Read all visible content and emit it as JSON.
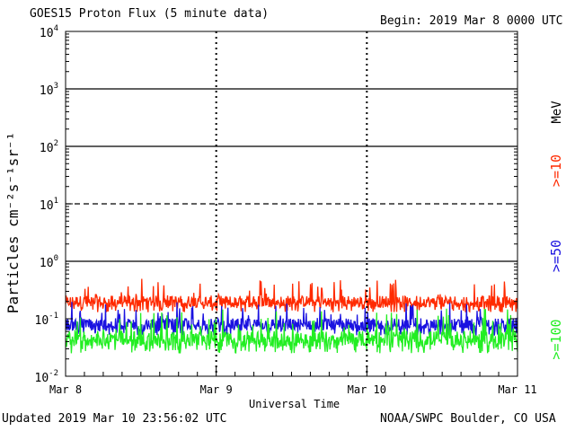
{
  "header": {
    "title": "GOES15 Proton Flux (5 minute data)",
    "begin": "Begin: 2019 Mar 8 0000 UTC"
  },
  "footer": {
    "updated": "Updated 2019 Mar 10 23:56:02 UTC",
    "credit": "NOAA/SWPC Boulder, CO USA"
  },
  "chart_data": {
    "type": "line",
    "title": "GOES15 Proton Flux (5 minute data)",
    "xlabel": "Universal Time",
    "ylabel": "Particles cm⁻²s⁻¹sr⁻¹",
    "yscale": "log",
    "ylim": [
      0.01,
      10000
    ],
    "y_ticks": [
      {
        "value": 0.01,
        "base": "10",
        "exp": "-2"
      },
      {
        "value": 0.1,
        "base": "10",
        "exp": "-1"
      },
      {
        "value": 1,
        "base": "10",
        "exp": "0"
      },
      {
        "value": 10,
        "base": "10",
        "exp": "1"
      },
      {
        "value": 100,
        "base": "10",
        "exp": "2"
      },
      {
        "value": 1000,
        "base": "10",
        "exp": "3"
      },
      {
        "value": 10000,
        "base": "10",
        "exp": "4"
      }
    ],
    "x_ticks": [
      "Mar 8",
      "Mar 9",
      "Mar 10",
      "Mar 11"
    ],
    "x_range_days": [
      0,
      3
    ],
    "unit_label": "MeV",
    "threshold_lines": [
      {
        "value": 10,
        "style": "dashed"
      },
      {
        "value": 1000,
        "style": "solid"
      },
      {
        "value": 100,
        "style": "solid"
      },
      {
        "value": 1,
        "style": "solid"
      }
    ],
    "series": [
      {
        "name": ">=10",
        "color": "#ff2a00",
        "baseline": 0.2,
        "low": 0.13,
        "high": 0.5
      },
      {
        "name": ">=50",
        "color": "#1a12e0",
        "baseline": 0.08,
        "low": 0.05,
        "high": 0.2
      },
      {
        "name": ">=100",
        "color": "#22ee22",
        "baseline": 0.045,
        "low": 0.025,
        "high": 0.15
      }
    ]
  }
}
